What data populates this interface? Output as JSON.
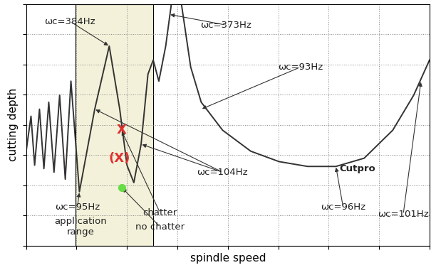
{
  "chart_data": {
    "type": "line",
    "x_label": "spindle speed",
    "y_label": "cutting depth",
    "xlim": [
      0,
      100
    ],
    "ylim": [
      0,
      100
    ],
    "xticks": [
      0,
      12.5,
      25,
      37.5,
      50,
      62.5,
      75,
      87.5,
      100
    ],
    "yticks": [
      0,
      12.5,
      25,
      37.5,
      50,
      62.5,
      75,
      87.5,
      100
    ],
    "grid": true,
    "tick_labels": false,
    "color": "#333333",
    "x": [
      0,
      1.2,
      2.1,
      3.3,
      4.4,
      5.6,
      6.9,
      8.3,
      9.7,
      11.1,
      13.2,
      17.0,
      20.6,
      23.2,
      25.0,
      26.7,
      28.5,
      30.2,
      31.5,
      32.9,
      34.6,
      36.0,
      37.2,
      38.5,
      40.8,
      43.4,
      48.7,
      55.7,
      62.7,
      69.8,
      76.8,
      83.8,
      90.9,
      96.1,
      100
    ],
    "values": [
      39.1,
      53.6,
      33.3,
      56.5,
      31.9,
      59.4,
      30.4,
      62.3,
      27.5,
      68.1,
      22.3,
      56.5,
      82.6,
      56.5,
      33.3,
      26.1,
      42.0,
      71.0,
      76.8,
      68.1,
      82.6,
      100,
      null,
      100,
      73.9,
      59.4,
      47.8,
      39.1,
      34.8,
      32.8,
      32.8,
      36.2,
      47.8,
      62.3,
      76.8
    ],
    "application_range": {
      "x": [
        12.3,
        31.5
      ],
      "color": "#f3f1d9"
    },
    "points": [
      {
        "label": "X",
        "x": 23.6,
        "y": 47.8,
        "color": "#e03030"
      },
      {
        "label": "(X)",
        "x": 23.2,
        "y": 36.2,
        "color": "#e03030"
      },
      {
        "marker": "o",
        "x": 23.7,
        "y": 24.1,
        "color": "#66dd44"
      }
    ],
    "annotations": [
      {
        "text": "ωc=384Hz",
        "x": 10.9,
        "y": 92.8,
        "targets": [
          [
            20.6,
            82.6
          ]
        ]
      },
      {
        "text": "ωc=373Hz",
        "x": 49.6,
        "y": 91.3,
        "targets": [
          [
            35.5,
            95.7
          ]
        ]
      },
      {
        "text": "ωc=93Hz",
        "x": 68.0,
        "y": 73.9,
        "targets": [
          [
            43.4,
            56.5
          ]
        ]
      },
      {
        "text": "ωc=104Hz",
        "x": 48.7,
        "y": 30.4,
        "targets": [
          [
            17.0,
            56.5
          ],
          [
            28.5,
            42.0
          ]
        ]
      },
      {
        "text": "ωc=95Hz",
        "x": 12.7,
        "y": 15.9,
        "targets": [
          [
            13.2,
            22.3
          ]
        ]
      },
      {
        "text": "Cutpro",
        "x": 82.1,
        "y": 31.9,
        "targets": []
      },
      {
        "text": "ωc=96Hz",
        "x": 78.6,
        "y": 15.9,
        "targets": [
          [
            76.8,
            32.8
          ]
        ]
      },
      {
        "text": "ωc=101Hz",
        "x": 93.5,
        "y": 13.0,
        "targets": [
          [
            97.9,
            68.1
          ]
        ]
      },
      {
        "text": "chatter",
        "x": 33.2,
        "y": 13.6,
        "targets": [
          [
            23.6,
            47.8
          ]
        ]
      },
      {
        "text": "no chatter",
        "x": 33.2,
        "y": 7.8,
        "targets": [
          [
            23.7,
            24.1
          ]
        ]
      },
      {
        "text": "application\nrange",
        "x": 13.5,
        "y": 7.8,
        "targets": []
      }
    ]
  }
}
